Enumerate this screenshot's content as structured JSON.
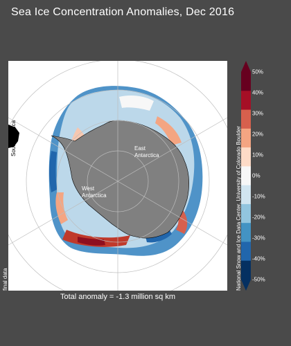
{
  "title": "Sea Ice Concentration Anomalies, Dec 2016",
  "total_anomaly": "Total anomaly = -1.3 million sq km",
  "credit": "National Snow and Ice Data Center, University of Colorado Boulder",
  "side_note": "final data",
  "map_labels": {
    "east_antarctica": [
      "East",
      "Antarctica"
    ],
    "west_antarctica": [
      "West",
      "Antarctica"
    ],
    "south_america": "South America"
  },
  "colorbar": {
    "ticks": [
      "50%",
      "40%",
      "30%",
      "20%",
      "10%",
      "0%",
      "-10%",
      "-20%",
      "-30%",
      "-40%",
      "-50%"
    ],
    "colors": [
      "#67001f",
      "#a50f26",
      "#d6604d",
      "#f4a582",
      "#fddbc7",
      "#f7f7f7",
      "#d1e5f0",
      "#92c5de",
      "#4393c3",
      "#2166ac",
      "#053061"
    ]
  },
  "colors": {
    "background": "#4a4a4a",
    "land": "#808080",
    "ocean": "#ffffff"
  }
}
